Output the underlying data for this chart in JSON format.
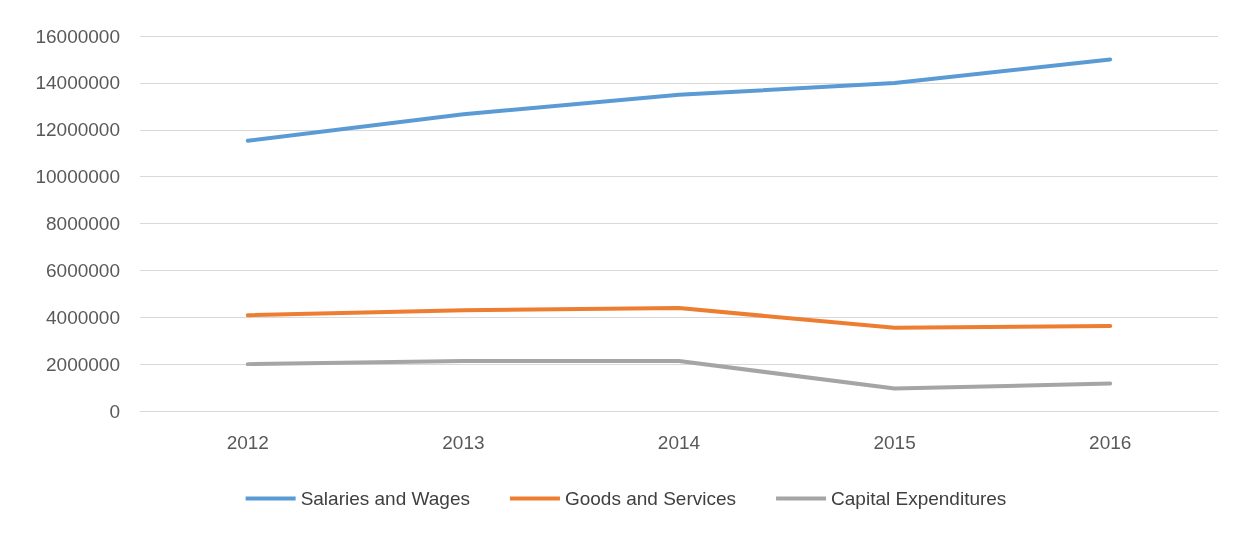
{
  "chart_data": {
    "type": "line",
    "categories": [
      "2012",
      "2013",
      "2014",
      "2015",
      "2016"
    ],
    "series": [
      {
        "name": "Salaries and Wages",
        "color": "#5b9bd5",
        "values": [
          11530000,
          12660000,
          13490000,
          13990000,
          15000000
        ]
      },
      {
        "name": "Goods and Services",
        "color": "#ed7d31",
        "values": [
          4090000,
          4300000,
          4390000,
          3550000,
          3630000
        ]
      },
      {
        "name": "Capital Expenditures",
        "color": "#a5a5a5",
        "values": [
          2000000,
          2130000,
          2130000,
          960000,
          1170000
        ]
      }
    ],
    "ylim": [
      0,
      16000000
    ],
    "yticks": [
      0,
      2000000,
      4000000,
      6000000,
      8000000,
      10000000,
      12000000,
      14000000,
      16000000
    ],
    "grid": "y",
    "legend": "bottom",
    "marker": "none",
    "line_style": "solid"
  }
}
